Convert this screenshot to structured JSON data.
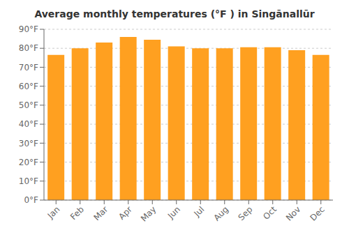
{
  "chart_data": {
    "type": "bar",
    "title": "Average monthly temperatures (°F ) in Singānallūr",
    "categories": [
      "Jan",
      "Feb",
      "Mar",
      "Apr",
      "May",
      "Jun",
      "Jul",
      "Aug",
      "Sep",
      "Oct",
      "Nov",
      "Dec"
    ],
    "values": [
      76.5,
      80.0,
      83.0,
      86.0,
      84.5,
      81.0,
      80.0,
      80.0,
      80.5,
      80.5,
      79.0,
      76.5
    ],
    "color": "#FFA020",
    "ylim": [
      0,
      90
    ],
    "yticks": [
      {
        "value": 0,
        "label": "0°F"
      },
      {
        "value": 10,
        "label": "10°F"
      },
      {
        "value": 20,
        "label": "20°F"
      },
      {
        "value": 30,
        "label": "30°F"
      },
      {
        "value": 40,
        "label": "40°F"
      },
      {
        "value": 50,
        "label": "50°F"
      },
      {
        "value": 60,
        "label": "60°F"
      },
      {
        "value": 70,
        "label": "70°F"
      },
      {
        "value": 80,
        "label": "80°F"
      },
      {
        "value": 90,
        "label": "90°F"
      }
    ],
    "grid": true
  }
}
